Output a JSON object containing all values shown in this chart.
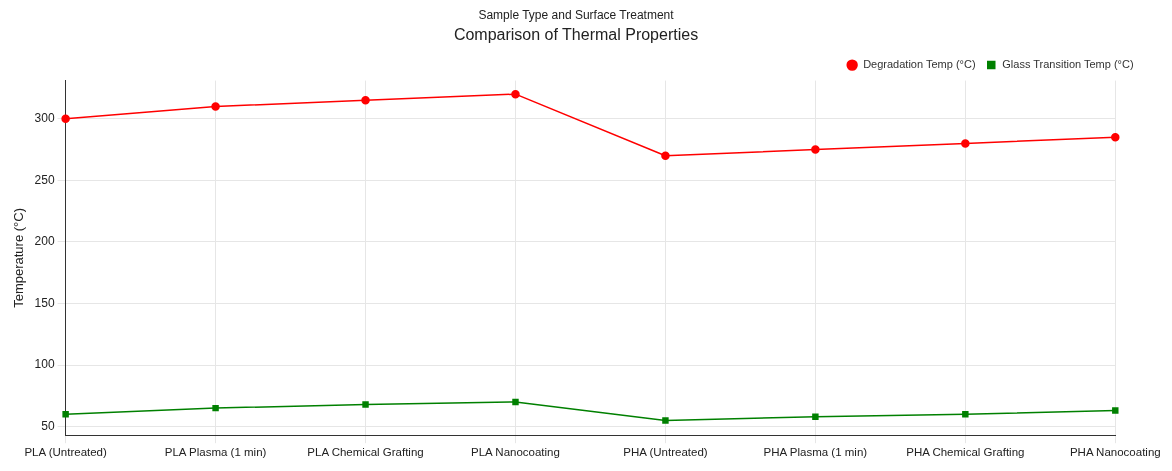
{
  "chart_data": {
    "type": "line",
    "title": "Comparison of Thermal Properties",
    "xlabel": "Sample Type and Surface Treatment",
    "ylabel": "Temperature (°C)",
    "categories": [
      "PLA (Untreated)",
      "PLA Plasma (1 min)",
      "PLA Chemical Grafting",
      "PLA Nanocoating",
      "PHA (Untreated)",
      "PHA Plasma (1 min)",
      "PHA Chemical Grafting",
      "PHA Nanocoating"
    ],
    "series": [
      {
        "name": "Degradation Temp (°C)",
        "color": "#ff0000",
        "marker": "circle",
        "values": [
          300,
          310,
          315,
          320,
          270,
          275,
          280,
          285
        ]
      },
      {
        "name": "Glass Transition Temp (°C)",
        "color": "#008000",
        "marker": "square",
        "values": [
          60,
          65,
          68,
          70,
          55,
          58,
          60,
          63
        ]
      }
    ],
    "ylim": [
      43,
      331
    ],
    "yticks": [
      50,
      100,
      150,
      200,
      250,
      300
    ],
    "grid": true,
    "legend": "top right",
    "line_style": "solid"
  }
}
